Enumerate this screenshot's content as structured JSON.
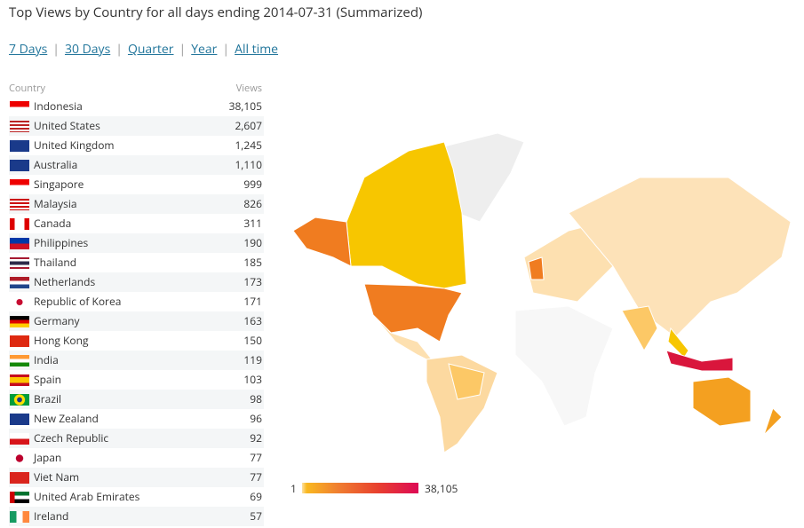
{
  "header": {
    "title": "Top Views by Country for all days ending 2014-07-31 (Summarized)",
    "links": [
      "7 Days",
      "30 Days",
      "Quarter",
      "Year",
      "All time"
    ],
    "separator": "|"
  },
  "table": {
    "columns": [
      "Country",
      "Views"
    ],
    "rows": [
      [
        "Indonesia",
        "38,105"
      ],
      [
        "United States",
        "2,607"
      ],
      [
        "United Kingdom",
        "1,245"
      ],
      [
        "Australia",
        "1,110"
      ],
      [
        "Singapore",
        "999"
      ],
      [
        "Malaysia",
        "826"
      ],
      [
        "Canada",
        "311"
      ],
      [
        "Philippines",
        "190"
      ],
      [
        "Thailand",
        "185"
      ],
      [
        "Netherlands",
        "173"
      ],
      [
        "Republic of Korea",
        "171"
      ],
      [
        "Germany",
        "163"
      ],
      [
        "Hong Kong",
        "150"
      ],
      [
        "India",
        "119"
      ],
      [
        "Spain",
        "103"
      ],
      [
        "Brazil",
        "98"
      ],
      [
        "New Zealand",
        "96"
      ],
      [
        "Czech Republic",
        "92"
      ],
      [
        "Japan",
        "77"
      ],
      [
        "Viet Nam",
        "77"
      ],
      [
        "United Arab Emirates",
        "69"
      ],
      [
        "Ireland",
        "57"
      ]
    ]
  },
  "legend": {
    "min": "1",
    "max": "38,105"
  }
}
